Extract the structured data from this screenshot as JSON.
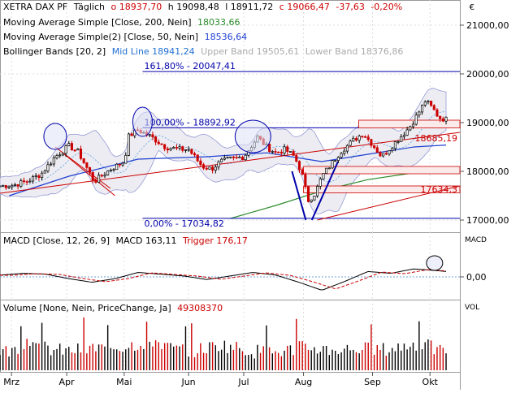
{
  "header": {
    "symbol": "XETRA DAX PF",
    "interval": "Täglich",
    "open_label": "o",
    "open": "18937,70",
    "high_label": "h",
    "high": "19098,48",
    "low_label": "l",
    "low": "18911,72",
    "close_label": "c",
    "close": "19066,47",
    "change": "-37,63",
    "change_pct": "-0,20%",
    "currency": "€"
  },
  "legend": {
    "ma200": {
      "label": "Moving Average Simple [Close, 200, Nein]",
      "value": "18033,66"
    },
    "ma50": {
      "label": "Moving Average Simple(2) [Close, 50, Nein]",
      "value": "18536,64"
    },
    "bollinger": {
      "label": "Bollinger Bands [20, 2]",
      "mid": "Mid Line 18941,24",
      "upper": "Upper Band 19505,61",
      "lower": "Lower Band 18376,86"
    }
  },
  "macd_legend": {
    "label": "MACD [Close, 12, 26, 9]",
    "macd": "MACD 163,11",
    "trigger": "Trigger 176,17",
    "axis_title": "MACD",
    "zero": "0,00"
  },
  "volume_legend": {
    "label": "Volume [None, Nein, PriceChange, Ja]",
    "value": "49308370",
    "axis_title": "VOL"
  },
  "annotations": {
    "fib_top": "161,80% - 20047,41",
    "fib_mid": "100,00% - 18892,92",
    "fib_low": "0,00% - 17034,82",
    "level_1": "18685,19",
    "level_2": "17634,3"
  },
  "chart_data": {
    "type": "candlestick",
    "title": "XETRA DAX PF",
    "x_ticks": [
      "Mrz",
      "Apr",
      "Mai",
      "Jun",
      "Jul",
      "Aug",
      "Sep",
      "Okt"
    ],
    "y_ticks": [
      "17000,00",
      "18000,00",
      "19000,00",
      "20000,00",
      "21000,00"
    ],
    "ylim": [
      16980,
      21500
    ],
    "colors": {
      "up": "#000000",
      "down": "#cc0000",
      "bollinger": "#8a8fd0",
      "ma50": "#1f3fd0",
      "ma200": "#2a8a2a",
      "trend": "#cc0000",
      "fib": "#0000aa"
    },
    "price_path": [
      [
        0,
        17700
      ],
      [
        0.03,
        17720
      ],
      [
        0.06,
        17800
      ],
      [
        0.09,
        17950
      ],
      [
        0.12,
        18300
      ],
      [
        0.15,
        18520
      ],
      [
        0.17,
        18400
      ],
      [
        0.19,
        18050
      ],
      [
        0.205,
        17790
      ],
      [
        0.22,
        17900
      ],
      [
        0.24,
        18040
      ],
      [
        0.27,
        18200
      ],
      [
        0.28,
        18720
      ],
      [
        0.3,
        18850
      ],
      [
        0.33,
        18700
      ],
      [
        0.36,
        18500
      ],
      [
        0.39,
        18450
      ],
      [
        0.41,
        18450
      ],
      [
        0.44,
        18100
      ],
      [
        0.46,
        18050
      ],
      [
        0.48,
        18200
      ],
      [
        0.5,
        18250
      ],
      [
        0.53,
        18300
      ],
      [
        0.56,
        18700
      ],
      [
        0.58,
        18500
      ],
      [
        0.6,
        18380
      ],
      [
        0.62,
        18450
      ],
      [
        0.64,
        18300
      ],
      [
        0.655,
        18000
      ],
      [
        0.67,
        17400
      ],
      [
        0.685,
        17550
      ],
      [
        0.7,
        17900
      ],
      [
        0.72,
        18150
      ],
      [
        0.74,
        18400
      ],
      [
        0.77,
        18650
      ],
      [
        0.79,
        18780
      ],
      [
        0.81,
        18550
      ],
      [
        0.83,
        18300
      ],
      [
        0.85,
        18500
      ],
      [
        0.87,
        18700
      ],
      [
        0.89,
        18900
      ],
      [
        0.91,
        19200
      ],
      [
        0.925,
        19450
      ],
      [
        0.94,
        19300
      ],
      [
        0.955,
        19100
      ],
      [
        0.97,
        19066
      ]
    ],
    "volume_path": [
      [
        0.02,
        0.35
      ],
      [
        0.06,
        0.9
      ],
      [
        0.11,
        0.5
      ],
      [
        0.15,
        0.45
      ],
      [
        0.2,
        0.55
      ],
      [
        0.26,
        0.6
      ],
      [
        0.34,
        0.85
      ],
      [
        0.37,
        0.55
      ],
      [
        0.42,
        0.45
      ],
      [
        0.48,
        0.7
      ],
      [
        0.55,
        0.45
      ],
      [
        0.6,
        0.4
      ],
      [
        0.66,
        0.6
      ],
      [
        0.72,
        0.5
      ],
      [
        0.78,
        0.55
      ],
      [
        0.84,
        0.5
      ],
      [
        0.91,
        0.75
      ],
      [
        0.96,
        0.45
      ]
    ],
    "macd_path": [
      [
        0,
        0.1
      ],
      [
        0.05,
        0.2
      ],
      [
        0.1,
        0.15
      ],
      [
        0.15,
        -0.1
      ],
      [
        0.2,
        -0.3
      ],
      [
        0.25,
        -0.1
      ],
      [
        0.3,
        0.25
      ],
      [
        0.35,
        0.15
      ],
      [
        0.4,
        0.05
      ],
      [
        0.45,
        -0.15
      ],
      [
        0.5,
        0.05
      ],
      [
        0.55,
        0.25
      ],
      [
        0.6,
        0.1
      ],
      [
        0.65,
        -0.3
      ],
      [
        0.7,
        -0.75
      ],
      [
        0.75,
        -0.25
      ],
      [
        0.8,
        0.3
      ],
      [
        0.85,
        0.2
      ],
      [
        0.9,
        0.45
      ],
      [
        0.95,
        0.35
      ],
      [
        0.97,
        0.3
      ]
    ]
  }
}
